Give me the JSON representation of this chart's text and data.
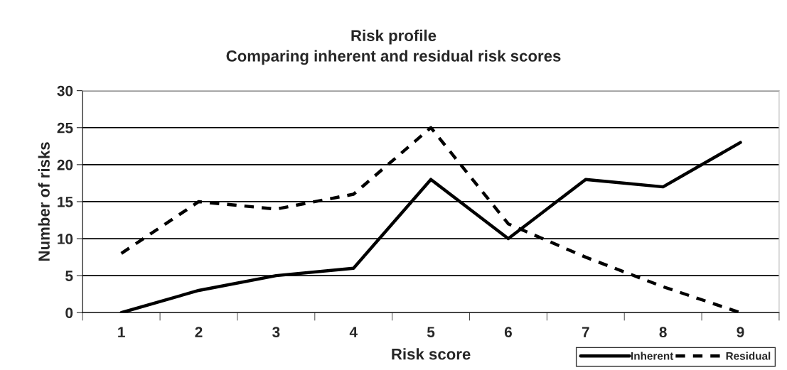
{
  "chart_data": {
    "type": "line",
    "title": "Risk profile\nComparing inherent and residual risk scores",
    "xlabel": "Risk score",
    "ylabel": "Number of risks",
    "categories": [
      "1",
      "2",
      "3",
      "4",
      "5",
      "6",
      "7",
      "8",
      "9"
    ],
    "series": [
      {
        "name": "Inherent",
        "color": "#000000",
        "line_style": "solid",
        "values": [
          0,
          3,
          5,
          6,
          18,
          10,
          18,
          17,
          23
        ]
      },
      {
        "name": "Residual",
        "color": "#000000",
        "line_style": "dashed",
        "values": [
          8,
          15,
          14,
          16,
          25,
          12,
          7.5,
          3.5,
          0
        ]
      }
    ],
    "ylim": [
      0,
      30
    ],
    "yticks": [
      0,
      5,
      10,
      15,
      20,
      25,
      30
    ],
    "grid": "y",
    "legend": "bottom right",
    "marker": "none"
  }
}
